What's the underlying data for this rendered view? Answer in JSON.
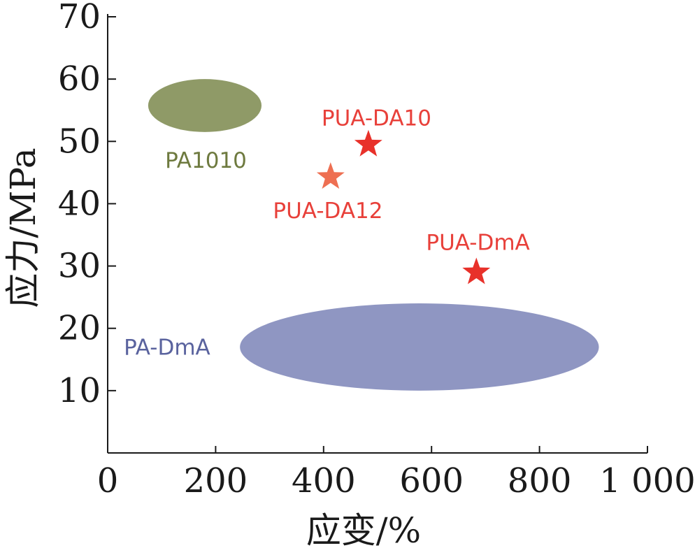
{
  "chart_data": {
    "type": "scatter",
    "xlabel": "应变/%",
    "ylabel": "应力/MPa",
    "xlim": [
      0,
      1000
    ],
    "ylim": [
      0,
      70
    ],
    "x_ticks": [
      0,
      200,
      400,
      600,
      800,
      1000
    ],
    "x_tick_labels": [
      "0",
      "200",
      "400",
      "600",
      "800",
      "1 000"
    ],
    "y_ticks": [
      10,
      20,
      30,
      40,
      50,
      60,
      70
    ],
    "y_tick_labels": [
      "10",
      "20",
      "30",
      "40",
      "50",
      "60",
      "70"
    ],
    "grid": false,
    "regions": [
      {
        "name": "PA1010",
        "x": [
          75,
          285
        ],
        "y": [
          51.5,
          60
        ],
        "color": "#8f9a67",
        "label_at": {
          "x": 182,
          "y": 47
        }
      },
      {
        "name": "PA-DmA",
        "x": [
          245,
          910
        ],
        "y": [
          10,
          24
        ],
        "color": "#8f96c2",
        "label_at": {
          "x": 110,
          "y": 17
        }
      }
    ],
    "points": [
      {
        "name": "PUA-DA10",
        "x": 483,
        "y": 49.5,
        "color": "#e8312a",
        "label_at": {
          "x": 498,
          "y": 53.8
        }
      },
      {
        "name": "PUA-DA12",
        "x": 413,
        "y": 44.3,
        "color": "#ee6f52",
        "label_at": {
          "x": 408,
          "y": 38.9
        }
      },
      {
        "name": "PUA-DmA",
        "x": 683,
        "y": 29,
        "color": "#e8312a",
        "label_at": {
          "x": 686,
          "y": 33.8
        }
      }
    ],
    "label_colors": {
      "PA1010": "#6e7a3f",
      "PA-DmA": "#5a639e",
      "points": "#e8403a"
    }
  }
}
